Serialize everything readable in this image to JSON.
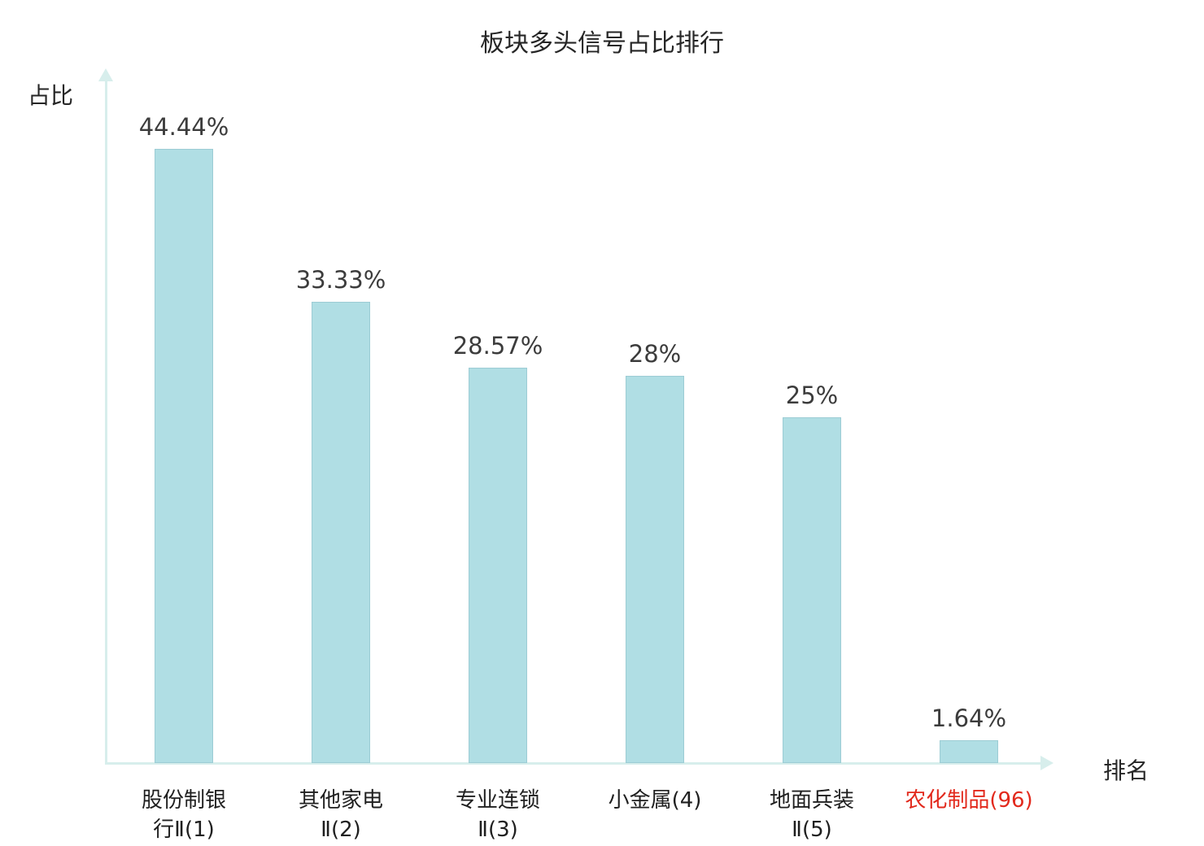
{
  "chart_data": {
    "type": "bar",
    "title": "板块多头信号占比排行",
    "xlabel": "排名",
    "ylabel": "占比",
    "categories": [
      "股份制银行Ⅱ(1)",
      "其他家电Ⅱ(2)",
      "专业连锁Ⅱ(3)",
      "小金属(4)",
      "地面兵装Ⅱ(5)",
      "农化制品(96)"
    ],
    "category_display_lines": [
      [
        "股份制银",
        "行Ⅱ(1)"
      ],
      [
        "其他家电",
        "Ⅱ(2)"
      ],
      [
        "专业连锁",
        "Ⅱ(3)"
      ],
      [
        "小金属(4)"
      ],
      [
        "地面兵装",
        "Ⅱ(5)"
      ],
      [
        "农化制品(96)"
      ]
    ],
    "values": [
      44.44,
      33.33,
      28.57,
      28,
      25,
      1.64
    ],
    "value_labels": [
      "44.44%",
      "33.33%",
      "28.57%",
      "28%",
      "25%",
      "1.64%"
    ],
    "ylim": [
      0,
      50
    ],
    "grid": false,
    "legend": "none",
    "highlight_index": 5,
    "colors": {
      "bar_fill": "#b0dee4",
      "axis": "#d7eeec",
      "value_text": "#3c3c3c",
      "tick_text": "#1f1f1f",
      "highlight_text": "#e2291c"
    }
  }
}
